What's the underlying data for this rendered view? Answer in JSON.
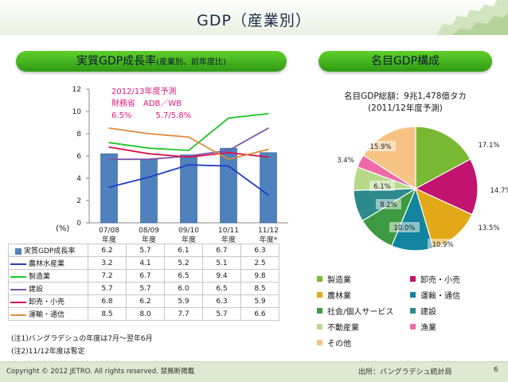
{
  "title": "GDP（産業別）",
  "left_banner": "実質GDP成長率",
  "left_banner_sub": "(産業別、前年度比)",
  "right_banner": "名目GDP構成",
  "forecast_note": {
    "line1": "2012/13年度予測",
    "line2": "財務省　ADB／WB",
    "line3": "6.5%　　　5.7/5.8%"
  },
  "y_unit": "(%)",
  "pie_title": {
    "line1": "名目GDP総額：9兆1,478億タカ",
    "line2": "(2011/12年度予測)"
  },
  "notes": [
    "(注1)バングラデシュの年度は7月～翌年6月",
    "(注2)11/12年度は暫定"
  ],
  "footer": {
    "copyright": "Copyright © 2012 JETRO. All rights reserved.  禁無断掲載",
    "source": "出所：バングラデシュ統計局",
    "page": "6"
  },
  "colors": {
    "bar": "#4f81bd",
    "banner": "#3cb21a"
  },
  "chart_data": [
    {
      "type": "bar+line",
      "categories": [
        "07/08\n年度",
        "08/09\n年度",
        "09/10\n年度",
        "10/11\n年度",
        "11/12\n年度*"
      ],
      "ylim": [
        0,
        12
      ],
      "yticks": [
        0,
        2,
        4,
        6,
        8,
        10,
        12
      ],
      "grid": false,
      "series": [
        {
          "name": "実質GDP成長率",
          "type": "bar",
          "color": "#4f81bd",
          "values": [
            6.2,
            5.7,
            6.1,
            6.7,
            6.3
          ]
        },
        {
          "name": "農林水産業",
          "type": "line",
          "color": "#1f3fbf",
          "values": [
            3.2,
            4.1,
            5.2,
            5.1,
            2.5
          ]
        },
        {
          "name": "製造業",
          "type": "line",
          "color": "#22c42a",
          "values": [
            7.2,
            6.7,
            6.5,
            9.4,
            9.8
          ]
        },
        {
          "name": "建設",
          "type": "line",
          "color": "#7b55a8",
          "values": [
            5.7,
            5.7,
            6.0,
            6.5,
            8.5
          ]
        },
        {
          "name": "卸売・小売",
          "type": "line",
          "color": "#d8154f",
          "values": [
            6.8,
            6.2,
            5.9,
            6.3,
            5.9
          ]
        },
        {
          "name": "運輸・通信",
          "type": "line",
          "color": "#e08a3a",
          "values": [
            8.5,
            8.0,
            7.7,
            5.7,
            6.6
          ]
        }
      ]
    },
    {
      "type": "pie",
      "slices": [
        {
          "name": "製造業",
          "value": 17.1,
          "label": "17.1%",
          "color": "#78b832"
        },
        {
          "name": "卸売・小売",
          "value": 14.7,
          "label": "14.7%",
          "color": "#c2146e"
        },
        {
          "name": "農林業",
          "value": 13.5,
          "label": "13.5%",
          "color": "#e2a817"
        },
        {
          "name": "運輸・通信",
          "value": 10.9,
          "label": "10.9%",
          "color": "#12849f"
        },
        {
          "name": "社会/個人サービス",
          "value": 10.0,
          "label": "10.0%",
          "color": "#3e9a42"
        },
        {
          "name": "建設",
          "value": 8.2,
          "label": "8.2%",
          "color": "#2c8a8c"
        },
        {
          "name": "不動産業",
          "value": 6.1,
          "label": "6.1%",
          "color": "#b6d98a"
        },
        {
          "name": "漁業",
          "value": 3.4,
          "label": "3.4%",
          "color": "#f06aa8"
        },
        {
          "name": "その他",
          "value": 15.9,
          "label": "15.9%",
          "color": "#f7c385"
        }
      ]
    }
  ]
}
